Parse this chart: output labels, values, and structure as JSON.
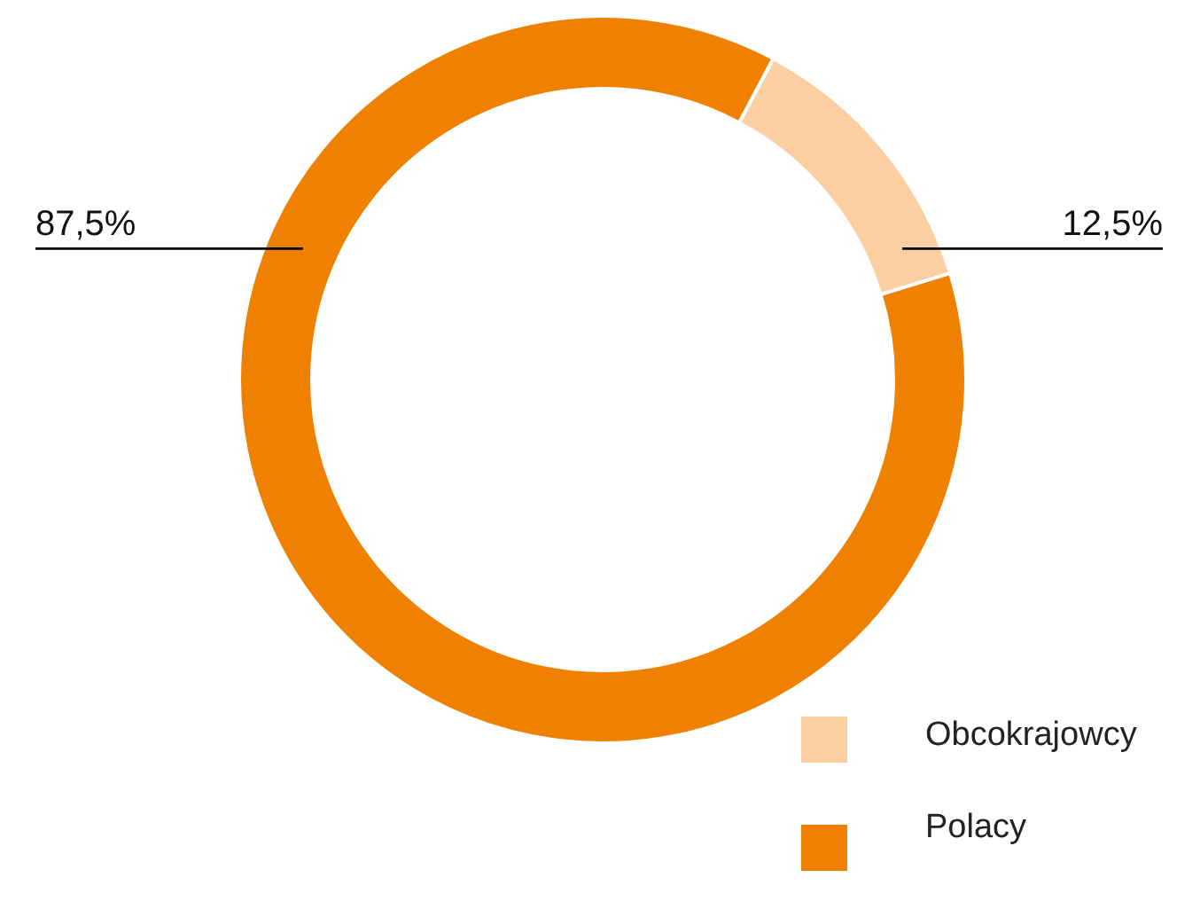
{
  "chart_data": {
    "type": "donut",
    "categories": [
      "Obcokrajowcy",
      "Polacy"
    ],
    "values": [
      12.5,
      87.5
    ],
    "colors": [
      "#fbcfa1",
      "#f08000"
    ],
    "value_labels": [
      "12,5%",
      "87,5%"
    ],
    "legend": "bottom right"
  }
}
